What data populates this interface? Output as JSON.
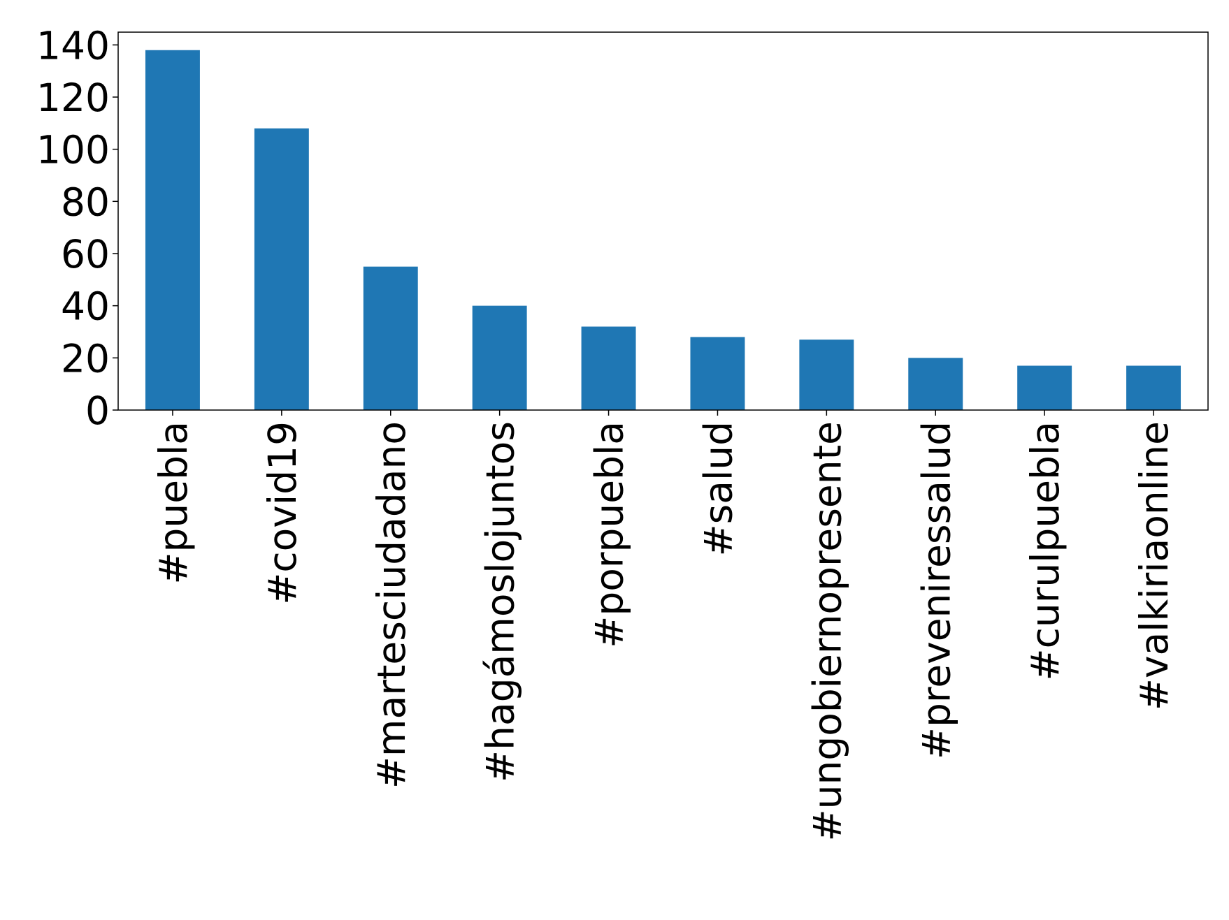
{
  "chart_data": {
    "type": "bar",
    "categories": [
      "#puebla",
      "#covid19",
      "#martesciudadano",
      "#hagámoslojuntos",
      "#porpuebla",
      "#salud",
      "#ungobiernopresente",
      "#preveniressalud",
      "#curulpuebla",
      "#valkiriaonline"
    ],
    "values": [
      138,
      108,
      55,
      40,
      32,
      28,
      27,
      20,
      17,
      17
    ],
    "color": "#1f77b4",
    "ylim": [
      0,
      144.9
    ],
    "yticks": [
      0,
      20,
      40,
      60,
      80,
      100,
      120,
      140
    ],
    "grid": false
  }
}
